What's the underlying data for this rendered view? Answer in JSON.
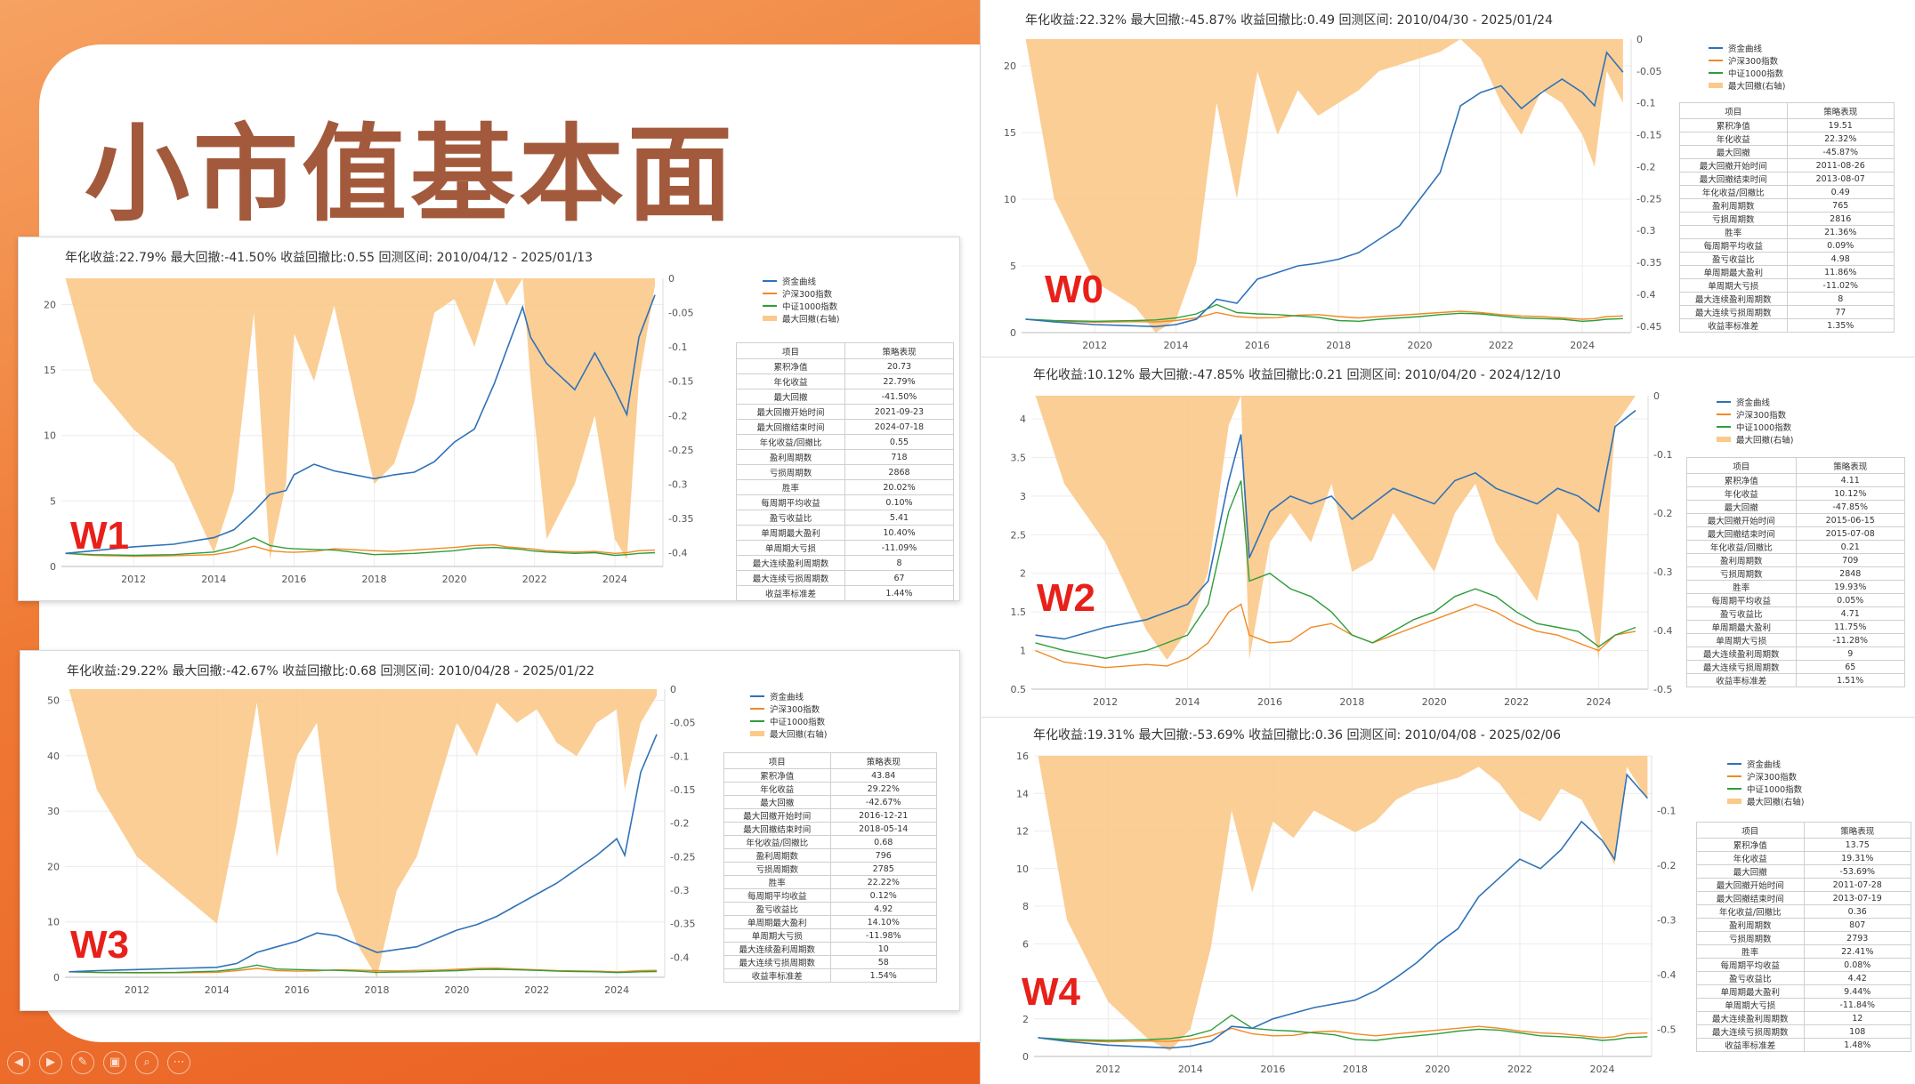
{
  "slide": {
    "title": "小市值基本面",
    "toolbar": [
      "◀",
      "▶",
      "✎",
      "▣",
      "⌕",
      "⋯"
    ]
  },
  "colors": {
    "equity": "#2f72b8",
    "hs300": "#f08a24",
    "zz1000": "#2e9e3a",
    "drawdown": "#fbc98a"
  },
  "legend": [
    "资金曲线",
    "沪深300指数",
    "中证1000指数",
    "最大回撤(右轴)"
  ],
  "table_header": [
    "项目",
    "策略表现"
  ],
  "table_items": [
    "累积净值",
    "年化收益",
    "最大回撤",
    "最大回撤开始时间",
    "最大回撤结束时间",
    "年化收益/回撤比",
    "盈利周期数",
    "亏损周期数",
    "胜率",
    "每周期平均收益",
    "盈亏收益比",
    "单周期最大盈利",
    "单周期大亏损",
    "最大连续盈利周期数",
    "最大连续亏损周期数",
    "收益率标准差"
  ],
  "x_ticks": [
    "2012",
    "2014",
    "2016",
    "2018",
    "2020",
    "2022",
    "2024"
  ],
  "chart_data": [
    {
      "type": "line",
      "label": "W1",
      "header": "年化收益:22.79%  最大回撤:-41.50%  收益回撤比:0.55  回测区间: 2010/04/12 - 2025/01/13",
      "x": [
        2010.3,
        2011,
        2012,
        2013,
        2014,
        2014.5,
        2015,
        2015.4,
        2015.8,
        2016,
        2016.5,
        2017,
        2018,
        2018.5,
        2019,
        2019.5,
        2020,
        2020.5,
        2021,
        2021.3,
        2021.7,
        2021.9,
        2022.3,
        2023,
        2023.5,
        2024,
        2024.3,
        2024.6,
        2025.0
      ],
      "ylim": [
        0,
        22
      ],
      "yticks": [
        0,
        5,
        10,
        15,
        20
      ],
      "y2lim": [
        -0.42,
        0
      ],
      "y2ticks": [
        "0",
        "-0.05",
        "-0.1",
        "-0.15",
        "-0.2",
        "-0.25",
        "-0.3",
        "-0.35",
        "-0.4"
      ],
      "series": [
        {
          "name": "资金曲线",
          "values": [
            1,
            1.2,
            1.5,
            1.7,
            2.2,
            2.8,
            4.2,
            5.5,
            5.8,
            7,
            7.8,
            7.3,
            6.7,
            7.0,
            7.2,
            8.0,
            9.5,
            10.5,
            14,
            16.5,
            19.8,
            17.5,
            15.5,
            13.5,
            16.3,
            13.5,
            11.6,
            17.5,
            20.73
          ]
        },
        {
          "name": "沪深300指数",
          "values": [
            1,
            0.85,
            0.78,
            0.82,
            0.9,
            1.15,
            1.55,
            1.2,
            1.1,
            1.08,
            1.15,
            1.35,
            1.2,
            1.15,
            1.25,
            1.35,
            1.45,
            1.6,
            1.65,
            1.5,
            1.4,
            1.35,
            1.2,
            1.1,
            1.15,
            1.0,
            1.05,
            1.2,
            1.25
          ]
        },
        {
          "name": "中证1000指数",
          "values": [
            1,
            0.9,
            0.85,
            0.9,
            1.1,
            1.5,
            2.2,
            1.6,
            1.4,
            1.35,
            1.3,
            1.25,
            0.9,
            0.95,
            1.0,
            1.1,
            1.2,
            1.4,
            1.45,
            1.4,
            1.3,
            1.2,
            1.1,
            1.0,
            1.05,
            0.85,
            0.9,
            1.0,
            1.05
          ]
        },
        {
          "name": "最大回撤(右轴)",
          "values": [
            0,
            -0.15,
            -0.22,
            -0.27,
            -0.4,
            -0.31,
            -0.05,
            -0.41,
            -0.3,
            -0.08,
            -0.15,
            -0.04,
            -0.3,
            -0.27,
            -0.18,
            -0.05,
            -0.03,
            -0.1,
            0,
            -0.04,
            0,
            -0.15,
            -0.38,
            -0.3,
            -0.2,
            -0.38,
            -0.41,
            -0.15,
            -0.01
          ]
        }
      ],
      "metrics": [
        "20.73",
        "22.79%",
        "-41.50%",
        "2021-09-23",
        "2024-07-18",
        "0.55",
        "718",
        "2868",
        "20.02%",
        "0.10%",
        "5.41",
        "10.40%",
        "-11.09%",
        "8",
        "67",
        "1.44%"
      ]
    },
    {
      "type": "line",
      "label": "W3",
      "header": "年化收益:29.22%  最大回撤:-42.67%  收益回撤比:0.68  回测区间: 2010/04/28 - 2025/01/22",
      "x": [
        2010.3,
        2011,
        2012,
        2013,
        2014,
        2014.5,
        2015,
        2015.5,
        2016,
        2016.5,
        2017,
        2017.5,
        2018,
        2018.5,
        2019,
        2019.5,
        2020,
        2020.5,
        2021,
        2021.5,
        2022,
        2022.5,
        2023,
        2023.5,
        2024,
        2024.2,
        2024.6,
        2025.0
      ],
      "ylim": [
        0,
        52
      ],
      "yticks": [
        0,
        10,
        20,
        30,
        40,
        50
      ],
      "y2lim": [
        -0.43,
        0
      ],
      "y2ticks": [
        "0",
        "-0.05",
        "-0.1",
        "-0.15",
        "-0.2",
        "-0.25",
        "-0.3",
        "-0.35",
        "-0.4"
      ],
      "series": [
        {
          "name": "资金曲线",
          "values": [
            1,
            1.2,
            1.4,
            1.6,
            1.8,
            2.5,
            4.5,
            5.5,
            6.5,
            8,
            7.5,
            6,
            4.5,
            5,
            5.5,
            7,
            8.5,
            9.5,
            11,
            13,
            15,
            17,
            19.5,
            22,
            25,
            22,
            37,
            43.84
          ]
        },
        {
          "name": "沪深300指数",
          "values": [
            1,
            0.85,
            0.78,
            0.82,
            0.9,
            1.2,
            1.6,
            1.2,
            1.1,
            1.15,
            1.35,
            1.3,
            1.2,
            1.15,
            1.25,
            1.3,
            1.45,
            1.6,
            1.65,
            1.5,
            1.35,
            1.2,
            1.15,
            1.1,
            1.0,
            1.05,
            1.2,
            1.25
          ]
        },
        {
          "name": "中证1000指数",
          "values": [
            1,
            0.9,
            0.85,
            0.9,
            1.1,
            1.5,
            2.2,
            1.5,
            1.4,
            1.3,
            1.25,
            1.1,
            0.9,
            0.95,
            1.0,
            1.1,
            1.2,
            1.4,
            1.45,
            1.35,
            1.25,
            1.1,
            1.05,
            1.0,
            0.85,
            0.9,
            1.0,
            1.05
          ]
        },
        {
          "name": "最大回撤(右轴)",
          "values": [
            0,
            -0.15,
            -0.25,
            -0.3,
            -0.35,
            -0.2,
            -0.02,
            -0.25,
            -0.1,
            -0.05,
            -0.3,
            -0.38,
            -0.43,
            -0.3,
            -0.25,
            -0.15,
            -0.05,
            -0.1,
            -0.02,
            -0.05,
            -0.03,
            -0.08,
            -0.1,
            -0.05,
            -0.03,
            -0.15,
            -0.05,
            -0.01
          ]
        }
      ],
      "metrics": [
        "43.84",
        "29.22%",
        "-42.67%",
        "2016-12-21",
        "2018-05-14",
        "0.68",
        "796",
        "2785",
        "22.22%",
        "0.12%",
        "4.92",
        "14.10%",
        "-11.98%",
        "10",
        "58",
        "1.54%"
      ]
    },
    {
      "type": "line",
      "label": "W0",
      "header": "年化收益:22.32%  最大回撤:-45.87%  收益回撤比:0.49  回测区间: 2010/04/30 - 2025/01/24",
      "x": [
        2010.3,
        2011,
        2012,
        2013,
        2013.5,
        2014,
        2014.5,
        2015,
        2015.5,
        2016,
        2016.5,
        2017,
        2017.5,
        2018,
        2018.5,
        2019,
        2019.5,
        2020,
        2020.5,
        2021,
        2021.5,
        2022,
        2022.5,
        2023,
        2023.5,
        2024,
        2024.3,
        2024.6,
        2025.0
      ],
      "ylim": [
        0,
        22
      ],
      "yticks": [
        0,
        5,
        10,
        15,
        20
      ],
      "y2lim": [
        -0.46,
        0
      ],
      "y2ticks": [
        "0",
        "-0.05",
        "-0.1",
        "-0.15",
        "-0.2",
        "-0.25",
        "-0.3",
        "-0.35",
        "-0.4",
        "-0.45"
      ],
      "series": [
        {
          "name": "资金曲线",
          "values": [
            1,
            0.8,
            0.6,
            0.5,
            0.45,
            0.6,
            1,
            2.5,
            2.2,
            4,
            4.5,
            5,
            5.2,
            5.5,
            6,
            7,
            8,
            10,
            12,
            17,
            18,
            18.5,
            16.8,
            18,
            19,
            18,
            17,
            21,
            19.51
          ]
        },
        {
          "name": "沪深300指数",
          "values": [
            1,
            0.85,
            0.78,
            0.82,
            0.8,
            0.9,
            1.1,
            1.5,
            1.2,
            1.1,
            1.12,
            1.3,
            1.35,
            1.2,
            1.1,
            1.2,
            1.3,
            1.4,
            1.5,
            1.6,
            1.5,
            1.35,
            1.25,
            1.2,
            1.1,
            1.0,
            1.05,
            1.2,
            1.25
          ]
        },
        {
          "name": "中证1000指数",
          "values": [
            1,
            0.9,
            0.85,
            0.9,
            0.95,
            1.1,
            1.4,
            2.1,
            1.5,
            1.4,
            1.35,
            1.25,
            1.15,
            0.9,
            0.85,
            1.0,
            1.1,
            1.2,
            1.35,
            1.45,
            1.4,
            1.25,
            1.1,
            1.05,
            1.0,
            0.85,
            0.9,
            1.0,
            1.05
          ]
        },
        {
          "name": "最大回撤(右轴)",
          "values": [
            0,
            -0.25,
            -0.38,
            -0.42,
            -0.46,
            -0.44,
            -0.35,
            -0.1,
            -0.25,
            -0.05,
            -0.15,
            -0.08,
            -0.12,
            -0.1,
            -0.08,
            -0.05,
            -0.04,
            -0.03,
            -0.02,
            0,
            -0.03,
            -0.1,
            -0.15,
            -0.08,
            -0.1,
            -0.15,
            -0.2,
            -0.05,
            -0.1
          ]
        }
      ],
      "metrics": [
        "19.51",
        "22.32%",
        "-45.87%",
        "2011-08-26",
        "2013-08-07",
        "0.49",
        "765",
        "2816",
        "21.36%",
        "0.09%",
        "4.98",
        "11.86%",
        "-11.02%",
        "8",
        "77",
        "1.35%"
      ]
    },
    {
      "type": "line",
      "label": "W2",
      "header": "年化收益:10.12%  最大回撤:-47.85%  收益回撤比:0.21  回测区间: 2010/04/20 - 2024/12/10",
      "x": [
        2010.3,
        2011,
        2012,
        2013,
        2013.5,
        2014,
        2014.5,
        2015,
        2015.3,
        2015.5,
        2016,
        2016.5,
        2017,
        2017.5,
        2018,
        2018.5,
        2019,
        2019.5,
        2020,
        2020.5,
        2021,
        2021.5,
        2022,
        2022.5,
        2023,
        2023.5,
        2024,
        2024.4,
        2024.9
      ],
      "ylim": [
        0.5,
        4.3
      ],
      "yticks": [
        0.5,
        1,
        1.5,
        2,
        2.5,
        3,
        3.5,
        4
      ],
      "y2lim": [
        -0.5,
        0
      ],
      "y2ticks": [
        "0",
        "-0.1",
        "-0.2",
        "-0.3",
        "-0.4",
        "-0.5"
      ],
      "series": [
        {
          "name": "资金曲线",
          "values": [
            1.2,
            1.15,
            1.3,
            1.4,
            1.5,
            1.6,
            1.9,
            3.2,
            3.8,
            2.2,
            2.8,
            3.0,
            2.9,
            3.0,
            2.7,
            2.9,
            3.1,
            3.0,
            2.9,
            3.2,
            3.3,
            3.1,
            3.0,
            2.9,
            3.1,
            3.0,
            2.8,
            3.9,
            4.11
          ]
        },
        {
          "name": "沪深300指数",
          "values": [
            1,
            0.85,
            0.78,
            0.82,
            0.8,
            0.9,
            1.1,
            1.5,
            1.6,
            1.2,
            1.1,
            1.12,
            1.3,
            1.35,
            1.2,
            1.1,
            1.2,
            1.3,
            1.4,
            1.5,
            1.6,
            1.5,
            1.35,
            1.25,
            1.2,
            1.1,
            1.0,
            1.2,
            1.25
          ]
        },
        {
          "name": "中证1000指数",
          "values": [
            1.1,
            1.0,
            0.9,
            1.0,
            1.1,
            1.2,
            1.6,
            2.8,
            3.2,
            1.9,
            2.0,
            1.8,
            1.7,
            1.5,
            1.2,
            1.1,
            1.25,
            1.4,
            1.5,
            1.7,
            1.8,
            1.7,
            1.5,
            1.35,
            1.3,
            1.25,
            1.05,
            1.2,
            1.3
          ]
        },
        {
          "name": "最大回撤(右轴)",
          "values": [
            0,
            -0.15,
            -0.25,
            -0.4,
            -0.45,
            -0.4,
            -0.3,
            -0.05,
            0,
            -0.45,
            -0.25,
            -0.2,
            -0.25,
            -0.15,
            -0.3,
            -0.28,
            -0.2,
            -0.25,
            -0.3,
            -0.2,
            -0.15,
            -0.25,
            -0.3,
            -0.35,
            -0.2,
            -0.25,
            -0.45,
            -0.05,
            0
          ]
        }
      ],
      "metrics": [
        "4.11",
        "10.12%",
        "-47.85%",
        "2015-06-15",
        "2015-07-08",
        "0.21",
        "709",
        "2848",
        "19.93%",
        "0.05%",
        "4.71",
        "11.75%",
        "-11.28%",
        "9",
        "65",
        "1.51%"
      ]
    },
    {
      "type": "line",
      "label": "W4",
      "header": "年化收益:19.31%  最大回撤:-53.69%  收益回撤比:0.36  回测区间: 2010/04/08 - 2025/02/06",
      "x": [
        2010.3,
        2011,
        2012,
        2013,
        2013.5,
        2014,
        2014.5,
        2015,
        2015.5,
        2016,
        2016.5,
        2017,
        2017.5,
        2018,
        2018.5,
        2019,
        2019.5,
        2020,
        2020.5,
        2021,
        2021.5,
        2022,
        2022.5,
        2023,
        2023.5,
        2024,
        2024.3,
        2024.6,
        2025.1
      ],
      "ylim": [
        0,
        16
      ],
      "yticks": [
        0,
        2,
        4,
        6,
        8,
        10,
        12,
        14,
        16
      ],
      "y2lim": [
        -0.55,
        0
      ],
      "y2ticks": [
        "-0.1",
        "-0.2",
        "-0.3",
        "-0.4",
        "-0.5"
      ],
      "series": [
        {
          "name": "资金曲线",
          "values": [
            1,
            0.8,
            0.6,
            0.5,
            0.45,
            0.55,
            0.8,
            1.6,
            1.5,
            2,
            2.3,
            2.6,
            2.8,
            3.0,
            3.5,
            4.2,
            5,
            6,
            6.8,
            8.5,
            9.5,
            10.5,
            10,
            11,
            12.5,
            11.5,
            10.5,
            15,
            13.75
          ]
        },
        {
          "name": "沪深300指数",
          "values": [
            1,
            0.85,
            0.78,
            0.82,
            0.8,
            0.9,
            1.1,
            1.5,
            1.2,
            1.1,
            1.12,
            1.3,
            1.35,
            1.2,
            1.1,
            1.2,
            1.3,
            1.4,
            1.5,
            1.6,
            1.5,
            1.35,
            1.25,
            1.2,
            1.1,
            1.0,
            1.05,
            1.2,
            1.25
          ]
        },
        {
          "name": "中证1000指数",
          "values": [
            1,
            0.9,
            0.85,
            0.9,
            0.95,
            1.1,
            1.4,
            2.2,
            1.5,
            1.4,
            1.35,
            1.25,
            1.15,
            0.9,
            0.85,
            1.0,
            1.1,
            1.2,
            1.35,
            1.45,
            1.4,
            1.25,
            1.1,
            1.05,
            1.0,
            0.85,
            0.9,
            1.0,
            1.05
          ]
        },
        {
          "name": "最大回撤(右轴)",
          "values": [
            0,
            -0.3,
            -0.45,
            -0.52,
            -0.54,
            -0.5,
            -0.35,
            -0.1,
            -0.25,
            -0.12,
            -0.15,
            -0.1,
            -0.12,
            -0.14,
            -0.12,
            -0.08,
            -0.06,
            -0.05,
            -0.04,
            -0.02,
            -0.05,
            -0.1,
            -0.12,
            -0.06,
            -0.08,
            -0.15,
            -0.2,
            -0.02,
            -0.08
          ]
        }
      ],
      "metrics": [
        "13.75",
        "19.31%",
        "-53.69%",
        "2011-07-28",
        "2013-07-19",
        "0.36",
        "807",
        "2793",
        "22.41%",
        "0.08%",
        "4.42",
        "9.44%",
        "-11.84%",
        "12",
        "108",
        "1.48%"
      ]
    }
  ]
}
